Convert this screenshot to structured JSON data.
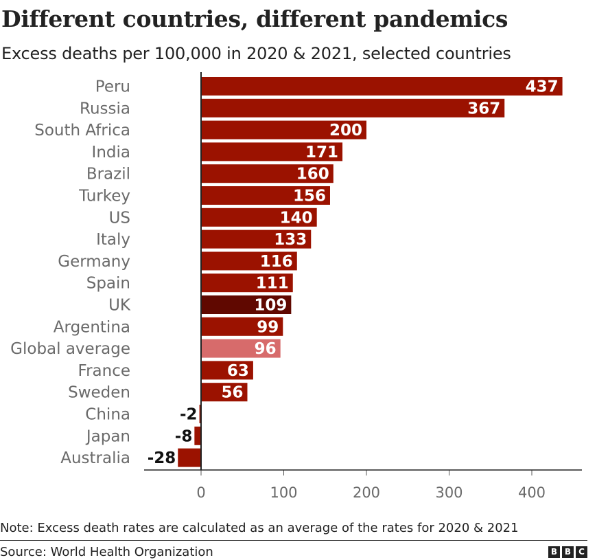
{
  "header": {
    "title": "Different countries, different pandemics",
    "subtitle": "Excess deaths per 100,000 in 2020 & 2021, selected countries"
  },
  "footer": {
    "note": "Note: Excess death rates are calculated as an average of the rates for 2020 & 2021",
    "source": "Source: World Health Organization",
    "logo_letters": [
      "B",
      "B",
      "C"
    ]
  },
  "colors": {
    "default_bar": "#9b1200",
    "highlight_bar": "#600800",
    "average_bar": "#d76b6b",
    "axis": "#222222",
    "gridline": "#c8c8c8"
  },
  "chart_data": {
    "type": "bar",
    "orientation": "horizontal",
    "categories": [
      "Peru",
      "Russia",
      "South Africa",
      "India",
      "Brazil",
      "Turkey",
      "US",
      "Italy",
      "Germany",
      "Spain",
      "UK",
      "Argentina",
      "Global average",
      "France",
      "Sweden",
      "China",
      "Japan",
      "Australia"
    ],
    "values": [
      437,
      367,
      200,
      171,
      160,
      156,
      140,
      133,
      116,
      111,
      109,
      99,
      96,
      63,
      56,
      -2,
      -8,
      -28
    ],
    "highlight": {
      "UK": "highlight_bar",
      "Global average": "average_bar"
    },
    "title": "Different countries, different pandemics",
    "subtitle": "Excess deaths per 100,000 in 2020 & 2021, selected countries",
    "xlabel": "",
    "ylabel": "",
    "xlim": [
      -70,
      460
    ],
    "xticks": [
      0,
      100,
      200,
      300,
      400
    ],
    "data_labels": true,
    "grid": false,
    "legend": "none"
  }
}
